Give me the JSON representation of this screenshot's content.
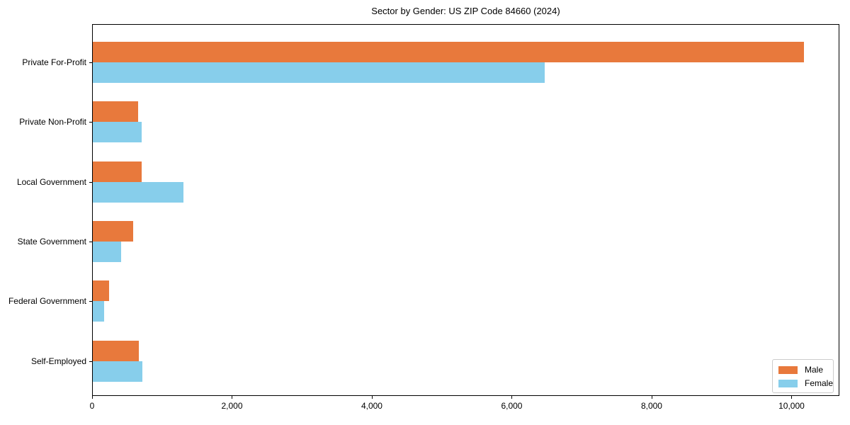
{
  "title": "Sector by Gender: US ZIP Code 84660 (2024)",
  "colors": {
    "male": "#E8793C",
    "female": "#87CEEB",
    "axis": "#000000",
    "legend_border": "#cccccc",
    "background": "#ffffff"
  },
  "legend": {
    "items": [
      {
        "label": "Male",
        "color": "#E8793C"
      },
      {
        "label": "Female",
        "color": "#87CEEB"
      }
    ]
  },
  "chart_data": {
    "type": "bar",
    "orientation": "horizontal",
    "title": "Sector by Gender: US ZIP Code 84660 (2024)",
    "categories": [
      "Private For-Profit",
      "Private Non-Profit",
      "Local Government",
      "State Government",
      "Federal Government",
      "Self-Employed"
    ],
    "series": [
      {
        "name": "Male",
        "color": "#E8793C",
        "values": [
          10170,
          650,
          700,
          580,
          230,
          660
        ]
      },
      {
        "name": "Female",
        "color": "#87CEEB",
        "values": [
          6460,
          700,
          1300,
          410,
          160,
          710
        ]
      }
    ],
    "x_ticks": [
      0,
      2000,
      4000,
      6000,
      8000,
      10000
    ],
    "x_tick_labels": [
      "0",
      "2,000",
      "4,000",
      "6,000",
      "8,000",
      "10,000"
    ],
    "xlim": [
      0,
      10684
    ],
    "xlabel": "",
    "ylabel": "",
    "grid": false,
    "legend_position": "lower right"
  }
}
